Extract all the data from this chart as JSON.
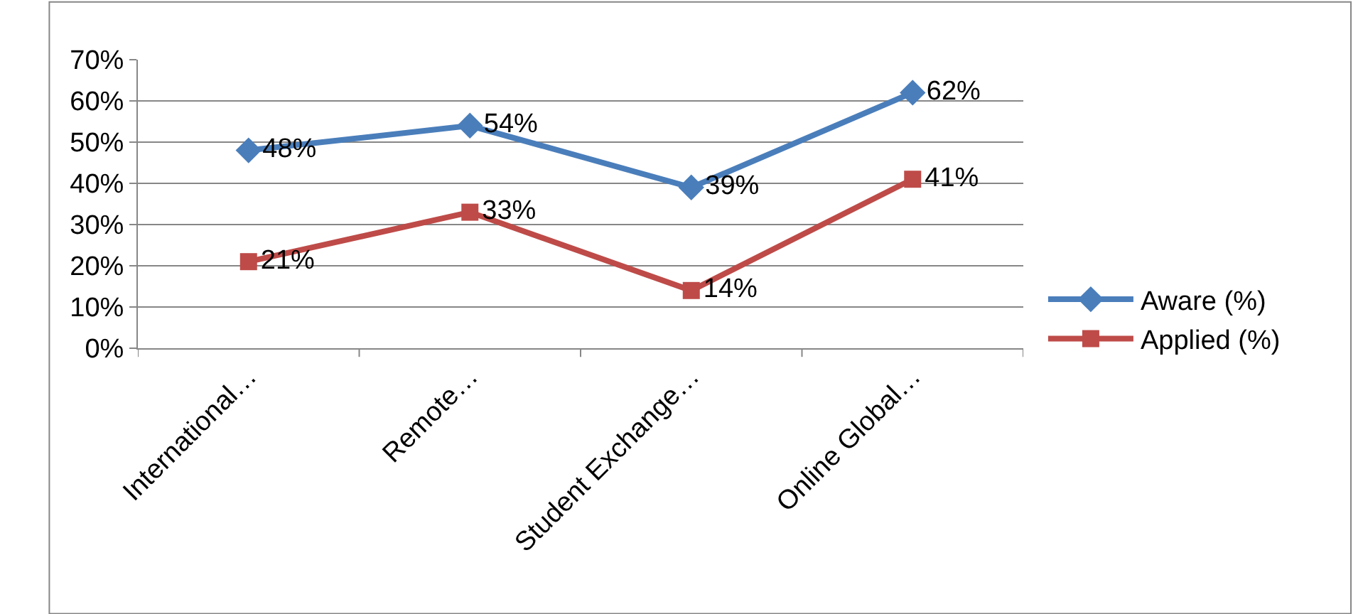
{
  "chart_data": {
    "type": "line",
    "categories": [
      "International…",
      "Remote…",
      "Student Exchange…",
      "Online Global…"
    ],
    "series": [
      {
        "name": "Aware (%)",
        "color": "#4a7ebb",
        "marker": "diamond",
        "values": [
          48,
          54,
          39,
          62
        ],
        "value_labels": [
          "48%",
          "54%",
          "39%",
          "62%"
        ]
      },
      {
        "name": "Applied (%)",
        "color": "#be4b48",
        "marker": "square",
        "values": [
          21,
          33,
          14,
          41
        ],
        "value_labels": [
          "21%",
          "33%",
          "14%",
          "41%"
        ]
      }
    ],
    "ylim": [
      0,
      70
    ],
    "yticks": [
      {
        "value": 0,
        "label": "0%"
      },
      {
        "value": 10,
        "label": "10%"
      },
      {
        "value": 20,
        "label": "20%"
      },
      {
        "value": 30,
        "label": "30%"
      },
      {
        "value": 40,
        "label": "40%"
      },
      {
        "value": 50,
        "label": "50%"
      },
      {
        "value": 60,
        "label": "60%"
      },
      {
        "value": 70,
        "label": "70%"
      }
    ],
    "grid": "y",
    "legend": "right",
    "line_style": "solid"
  }
}
